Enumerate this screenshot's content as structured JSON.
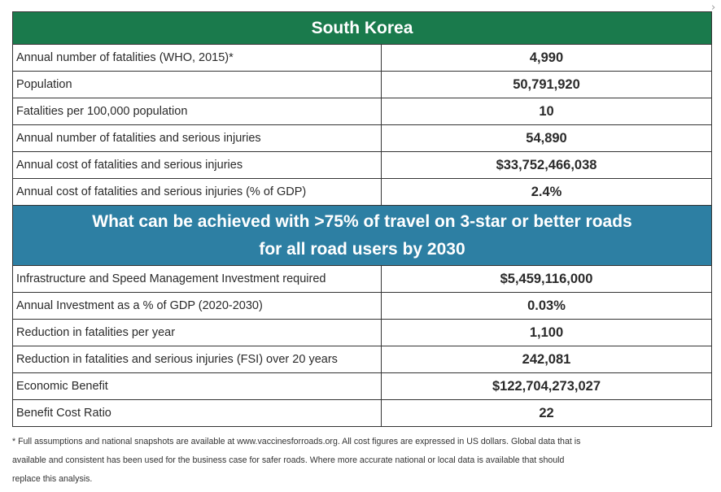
{
  "title": "South Korea",
  "rows_top": [
    {
      "label": "Annual number of fatalities (WHO, 2015)*",
      "value": "4,990"
    },
    {
      "label": "Population",
      "value": "50,791,920"
    },
    {
      "label": "Fatalities per 100,000 population",
      "value": "10"
    },
    {
      "label": "Annual number of fatalities and serious injuries",
      "value": "54,890"
    },
    {
      "label": "Annual cost of fatalities and serious injuries",
      "value": "$33,752,466,038"
    },
    {
      "label": "Annual cost of fatalities and serious injuries (% of GDP)",
      "value": "2.4%"
    }
  ],
  "section_heading": {
    "line1": "What can be achieved with >75% of travel on 3-star or better roads",
    "line2": "for all road users by 2030"
  },
  "rows_bottom": [
    {
      "label": "Infrastructure and Speed Management Investment required",
      "value": "$5,459,116,000"
    },
    {
      "label": "Annual Investment as a % of GDP (2020-2030)",
      "value": "0.03%"
    },
    {
      "label": "Reduction in fatalities per year",
      "value": "1,100"
    },
    {
      "label": "Reduction in fatalities and serious injuries (FSI) over 20 years",
      "value": "242,081"
    },
    {
      "label": "Economic Benefit",
      "value": "$122,704,273,027"
    },
    {
      "label": "Benefit Cost Ratio",
      "value": "22"
    }
  ],
  "footnote": {
    "line1": "* Full assumptions and national snapshots are available at www.vaccinesforroads.org. All cost figures are expressed in US dollars. Global data that is",
    "line2": "available and consistent has been used for the business case for safer roads. Where more accurate national or local data is available that should",
    "line3": "replace this analysis."
  },
  "colors": {
    "green_header": "#1a7a4c",
    "blue_header": "#2d7fa3"
  },
  "icons": {
    "corner": "chevron-right-icon"
  }
}
